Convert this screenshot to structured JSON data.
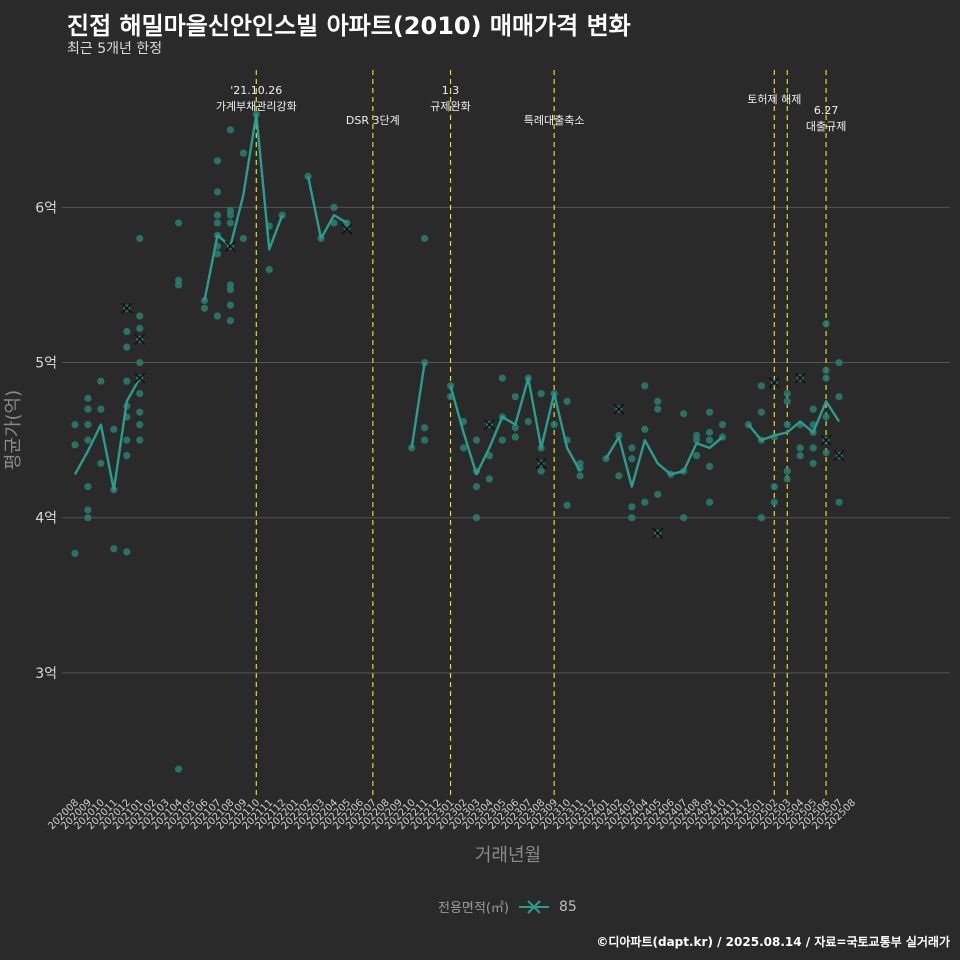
{
  "title": "진접 해밀마을신안인스빌 아파트(2010) 매매가격 변화",
  "subtitle": "최근 5개년 한정",
  "caption": "©디아파트(dapt.kr) / 2025.08.14 / 자료=국토교통부 실거래가",
  "colors": {
    "background": "#2b2a2b",
    "series": "#2a9d8f",
    "point": "#2a7f73",
    "event_line": "#e0e020",
    "grid": "#555555"
  },
  "legend": {
    "title": "전용면적(㎡)",
    "items": [
      "85"
    ]
  },
  "chart_data": {
    "type": "line",
    "xlabel": "거래년월",
    "ylabel": "평균가(억)",
    "ylim": [
      2.2,
      6.95
    ],
    "y_ticks": [
      3,
      4,
      5,
      6
    ],
    "y_tick_labels": [
      "3억",
      "4억",
      "5억",
      "6억"
    ],
    "grid": true,
    "legend_position": "bottom",
    "categories": [
      "202008",
      "202009",
      "202010",
      "202011",
      "202012",
      "202101",
      "202102",
      "202103",
      "202104",
      "202105",
      "202106",
      "202107",
      "202108",
      "202109",
      "202110",
      "202111",
      "202112",
      "202201",
      "202202",
      "202203",
      "202204",
      "202205",
      "202206",
      "202207",
      "202208",
      "202209",
      "202210",
      "202211",
      "202212",
      "202301",
      "202302",
      "202303",
      "202304",
      "202305",
      "202306",
      "202307",
      "202308",
      "202309",
      "202310",
      "202311",
      "202312",
      "202401",
      "202402",
      "202403",
      "202404",
      "202405",
      "202406",
      "202407",
      "202408",
      "202409",
      "202410",
      "202411",
      "202412",
      "202501",
      "202502",
      "202503",
      "202504",
      "202505",
      "202506",
      "202507",
      "202508"
    ],
    "series": [
      {
        "name": "85",
        "values": [
          4.28,
          4.43,
          4.6,
          4.18,
          4.75,
          4.9,
          null,
          null,
          null,
          null,
          5.4,
          5.82,
          5.75,
          6.08,
          6.6,
          5.73,
          5.95,
          null,
          6.2,
          5.8,
          5.95,
          5.9,
          null,
          null,
          null,
          null,
          4.45,
          5.0,
          null,
          4.85,
          4.55,
          4.28,
          4.45,
          4.65,
          4.6,
          4.9,
          4.45,
          4.8,
          4.45,
          4.3,
          null,
          4.38,
          4.52,
          4.2,
          4.5,
          4.35,
          4.28,
          4.3,
          4.48,
          4.45,
          4.52,
          null,
          4.6,
          4.5,
          4.53,
          4.55,
          4.62,
          4.55,
          4.75,
          4.62,
          null
        ]
      }
    ],
    "scatter_points": [
      {
        "x": "202008",
        "y": 3.77
      },
      {
        "x": "202008",
        "y": 4.47
      },
      {
        "x": "202008",
        "y": 4.6
      },
      {
        "x": "202009",
        "y": 4.0
      },
      {
        "x": "202009",
        "y": 4.05
      },
      {
        "x": "202009",
        "y": 4.2
      },
      {
        "x": "202009",
        "y": 4.5
      },
      {
        "x": "202009",
        "y": 4.6
      },
      {
        "x": "202009",
        "y": 4.7
      },
      {
        "x": "202009",
        "y": 4.77
      },
      {
        "x": "202010",
        "y": 4.35
      },
      {
        "x": "202010",
        "y": 4.7
      },
      {
        "x": "202010",
        "y": 4.88
      },
      {
        "x": "202011",
        "y": 3.8
      },
      {
        "x": "202011",
        "y": 4.18
      },
      {
        "x": "202011",
        "y": 4.57
      },
      {
        "x": "202012",
        "y": 3.78
      },
      {
        "x": "202012",
        "y": 4.4
      },
      {
        "x": "202012",
        "y": 4.5
      },
      {
        "x": "202012",
        "y": 4.65
      },
      {
        "x": "202012",
        "y": 4.72
      },
      {
        "x": "202012",
        "y": 4.88
      },
      {
        "x": "202012",
        "y": 5.1
      },
      {
        "x": "202012",
        "y": 5.2
      },
      {
        "x": "202012",
        "y": 5.35
      },
      {
        "x": "202101",
        "y": 4.5
      },
      {
        "x": "202101",
        "y": 4.6
      },
      {
        "x": "202101",
        "y": 4.68
      },
      {
        "x": "202101",
        "y": 4.8
      },
      {
        "x": "202101",
        "y": 4.9
      },
      {
        "x": "202101",
        "y": 5.0
      },
      {
        "x": "202101",
        "y": 5.15
      },
      {
        "x": "202101",
        "y": 5.22
      },
      {
        "x": "202101",
        "y": 5.3
      },
      {
        "x": "202101",
        "y": 5.8
      },
      {
        "x": "202104",
        "y": 2.38
      },
      {
        "x": "202104",
        "y": 5.5
      },
      {
        "x": "202104",
        "y": 5.53
      },
      {
        "x": "202104",
        "y": 5.9
      },
      {
        "x": "202106",
        "y": 5.35
      },
      {
        "x": "202106",
        "y": 5.4
      },
      {
        "x": "202107",
        "y": 5.3
      },
      {
        "x": "202107",
        "y": 5.7
      },
      {
        "x": "202107",
        "y": 5.75
      },
      {
        "x": "202107",
        "y": 5.82
      },
      {
        "x": "202107",
        "y": 5.9
      },
      {
        "x": "202107",
        "y": 5.95
      },
      {
        "x": "202107",
        "y": 6.1
      },
      {
        "x": "202107",
        "y": 6.3
      },
      {
        "x": "202108",
        "y": 5.27
      },
      {
        "x": "202108",
        "y": 5.37
      },
      {
        "x": "202108",
        "y": 5.47
      },
      {
        "x": "202108",
        "y": 5.5
      },
      {
        "x": "202108",
        "y": 5.75
      },
      {
        "x": "202108",
        "y": 5.9
      },
      {
        "x": "202108",
        "y": 5.95
      },
      {
        "x": "202108",
        "y": 5.98
      },
      {
        "x": "202108",
        "y": 6.5
      },
      {
        "x": "202109",
        "y": 5.8
      },
      {
        "x": "202109",
        "y": 6.35
      },
      {
        "x": "202110",
        "y": 6.6
      },
      {
        "x": "202111",
        "y": 5.6
      },
      {
        "x": "202111",
        "y": 5.88
      },
      {
        "x": "202112",
        "y": 5.95
      },
      {
        "x": "202202",
        "y": 6.2
      },
      {
        "x": "202203",
        "y": 5.8
      },
      {
        "x": "202204",
        "y": 5.9
      },
      {
        "x": "202204",
        "y": 6.0
      },
      {
        "x": "202205",
        "y": 5.87
      },
      {
        "x": "202205",
        "y": 5.9
      },
      {
        "x": "202210",
        "y": 4.45
      },
      {
        "x": "202211",
        "y": 4.5
      },
      {
        "x": "202211",
        "y": 4.58
      },
      {
        "x": "202211",
        "y": 5.0
      },
      {
        "x": "202211",
        "y": 5.8
      },
      {
        "x": "202301",
        "y": 4.78
      },
      {
        "x": "202301",
        "y": 4.85
      },
      {
        "x": "202302",
        "y": 4.45
      },
      {
        "x": "202302",
        "y": 4.62
      },
      {
        "x": "202303",
        "y": 4.0
      },
      {
        "x": "202303",
        "y": 4.2
      },
      {
        "x": "202303",
        "y": 4.3
      },
      {
        "x": "202303",
        "y": 4.5
      },
      {
        "x": "202304",
        "y": 4.25
      },
      {
        "x": "202304",
        "y": 4.4
      },
      {
        "x": "202304",
        "y": 4.6
      },
      {
        "x": "202305",
        "y": 4.5
      },
      {
        "x": "202305",
        "y": 4.65
      },
      {
        "x": "202305",
        "y": 4.9
      },
      {
        "x": "202306",
        "y": 4.52
      },
      {
        "x": "202306",
        "y": 4.58
      },
      {
        "x": "202306",
        "y": 4.78
      },
      {
        "x": "202307",
        "y": 4.62
      },
      {
        "x": "202307",
        "y": 4.9
      },
      {
        "x": "202308",
        "y": 4.3
      },
      {
        "x": "202308",
        "y": 4.35
      },
      {
        "x": "202308",
        "y": 4.45
      },
      {
        "x": "202308",
        "y": 4.8
      },
      {
        "x": "202309",
        "y": 4.6
      },
      {
        "x": "202309",
        "y": 4.8
      },
      {
        "x": "202310",
        "y": 4.08
      },
      {
        "x": "202310",
        "y": 4.5
      },
      {
        "x": "202310",
        "y": 4.75
      },
      {
        "x": "202311",
        "y": 4.27
      },
      {
        "x": "202311",
        "y": 4.32
      },
      {
        "x": "202311",
        "y": 4.35
      },
      {
        "x": "202401",
        "y": 4.38
      },
      {
        "x": "202402",
        "y": 4.27
      },
      {
        "x": "202402",
        "y": 4.53
      },
      {
        "x": "202402",
        "y": 4.7
      },
      {
        "x": "202403",
        "y": 4.0
      },
      {
        "x": "202403",
        "y": 4.07
      },
      {
        "x": "202403",
        "y": 4.38
      },
      {
        "x": "202403",
        "y": 4.45
      },
      {
        "x": "202404",
        "y": 4.1
      },
      {
        "x": "202404",
        "y": 4.57
      },
      {
        "x": "202404",
        "y": 4.85
      },
      {
        "x": "202405",
        "y": 3.9
      },
      {
        "x": "202405",
        "y": 4.15
      },
      {
        "x": "202405",
        "y": 4.7
      },
      {
        "x": "202405",
        "y": 4.75
      },
      {
        "x": "202406",
        "y": 4.28
      },
      {
        "x": "202407",
        "y": 4.0
      },
      {
        "x": "202407",
        "y": 4.3
      },
      {
        "x": "202407",
        "y": 4.67
      },
      {
        "x": "202408",
        "y": 4.4
      },
      {
        "x": "202408",
        "y": 4.5
      },
      {
        "x": "202408",
        "y": 4.53
      },
      {
        "x": "202409",
        "y": 4.1
      },
      {
        "x": "202409",
        "y": 4.33
      },
      {
        "x": "202409",
        "y": 4.5
      },
      {
        "x": "202409",
        "y": 4.55
      },
      {
        "x": "202409",
        "y": 4.68
      },
      {
        "x": "202410",
        "y": 4.52
      },
      {
        "x": "202410",
        "y": 4.6
      },
      {
        "x": "202412",
        "y": 4.6
      },
      {
        "x": "202501",
        "y": 4.0
      },
      {
        "x": "202501",
        "y": 4.5
      },
      {
        "x": "202501",
        "y": 4.68
      },
      {
        "x": "202501",
        "y": 4.85
      },
      {
        "x": "202502",
        "y": 4.1
      },
      {
        "x": "202502",
        "y": 4.2
      },
      {
        "x": "202502",
        "y": 4.52
      },
      {
        "x": "202502",
        "y": 4.87
      },
      {
        "x": "202503",
        "y": 4.25
      },
      {
        "x": "202503",
        "y": 4.3
      },
      {
        "x": "202503",
        "y": 4.6
      },
      {
        "x": "202503",
        "y": 4.75
      },
      {
        "x": "202503",
        "y": 4.8
      },
      {
        "x": "202504",
        "y": 4.4
      },
      {
        "x": "202504",
        "y": 4.45
      },
      {
        "x": "202504",
        "y": 4.6
      },
      {
        "x": "202504",
        "y": 4.9
      },
      {
        "x": "202505",
        "y": 4.35
      },
      {
        "x": "202505",
        "y": 4.45
      },
      {
        "x": "202505",
        "y": 4.55
      },
      {
        "x": "202505",
        "y": 4.6
      },
      {
        "x": "202505",
        "y": 4.7
      },
      {
        "x": "202506",
        "y": 4.42
      },
      {
        "x": "202506",
        "y": 4.5
      },
      {
        "x": "202506",
        "y": 4.65
      },
      {
        "x": "202506",
        "y": 4.9
      },
      {
        "x": "202506",
        "y": 4.95
      },
      {
        "x": "202506",
        "y": 5.25
      },
      {
        "x": "202507",
        "y": 4.1
      },
      {
        "x": "202507",
        "y": 4.4
      },
      {
        "x": "202507",
        "y": 4.78
      },
      {
        "x": "202507",
        "y": 5.0
      }
    ],
    "x_markers": [
      {
        "x": "202012",
        "y": 5.35
      },
      {
        "x": "202101",
        "y": 5.15
      },
      {
        "x": "202101",
        "y": 4.9
      },
      {
        "x": "202108",
        "y": 5.75
      },
      {
        "x": "202205",
        "y": 5.86
      },
      {
        "x": "202304",
        "y": 4.6
      },
      {
        "x": "202308",
        "y": 4.35
      },
      {
        "x": "202402",
        "y": 4.7
      },
      {
        "x": "202405",
        "y": 3.9
      },
      {
        "x": "202502",
        "y": 4.87
      },
      {
        "x": "202504",
        "y": 4.9
      },
      {
        "x": "202506",
        "y": 4.5
      },
      {
        "x": "202507",
        "y": 4.4
      }
    ],
    "events": [
      {
        "x": "202110",
        "label": [
          "'21.10.26",
          "가계부채관리강화"
        ],
        "level": 1
      },
      {
        "x": "202207",
        "label": [
          "DSR 3단계"
        ],
        "level": 2
      },
      {
        "x": "202301",
        "label": [
          "1.3",
          "규제완화"
        ],
        "level": 1
      },
      {
        "x": "202309",
        "label": [
          "특례대출축소"
        ],
        "level": 2
      },
      {
        "x": "202502",
        "label": [
          "토허제 해제"
        ],
        "level": 0
      },
      {
        "x": "202503",
        "label": [],
        "level": 0
      },
      {
        "x": "202506",
        "label": [
          "6.27",
          "대출규제"
        ],
        "level": 1
      }
    ]
  }
}
